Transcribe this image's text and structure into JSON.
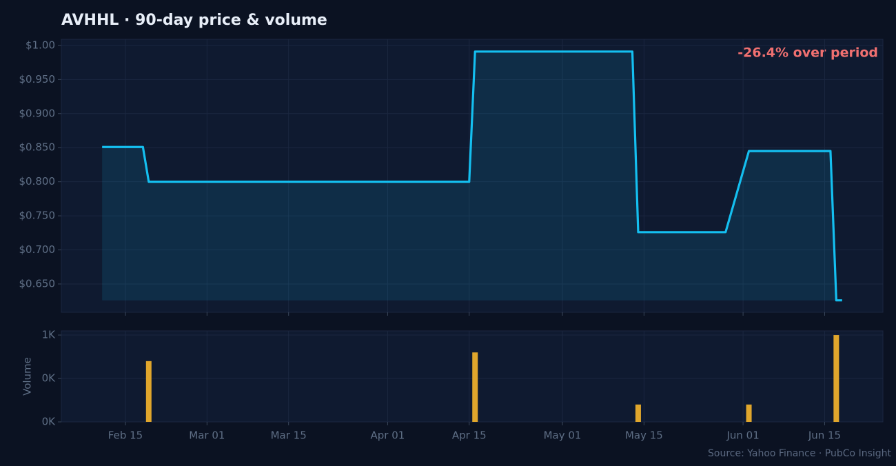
{
  "chart_data": [
    {
      "type": "line",
      "title": "AVHHL  ·  90-day price & volume",
      "annotation": "-26.4% over period",
      "x": [
        "02-11",
        "02-18",
        "02-19",
        "04-15",
        "04-16",
        "05-13",
        "05-14",
        "05-29",
        "06-02",
        "06-16",
        "06-17",
        "06-18"
      ],
      "series": [
        {
          "name": "Price",
          "color": "#14bff0",
          "values": [
            0.851,
            0.851,
            0.8,
            0.8,
            0.991,
            0.991,
            0.726,
            0.726,
            0.845,
            0.845,
            0.626,
            0.626
          ]
        }
      ],
      "xlim": [
        "02-04",
        "06-25"
      ],
      "ylim": [
        0.6085,
        1.009
      ],
      "yticks": [
        {
          "value": 0.65,
          "label": "$0.650"
        },
        {
          "value": 0.7,
          "label": "$0.700"
        },
        {
          "value": 0.75,
          "label": "$0.750"
        },
        {
          "value": 0.8,
          "label": "$0.800"
        },
        {
          "value": 0.85,
          "label": "$0.850"
        },
        {
          "value": 0.9,
          "label": "$0.900"
        },
        {
          "value": 0.95,
          "label": "$0.950"
        },
        {
          "value": 1.0,
          "label": "$1.00"
        }
      ],
      "grid": true
    },
    {
      "type": "bar",
      "ylabel": "Volume",
      "source": "Source: Yahoo Finance · PubCo Insight",
      "x": [
        "02-19",
        "04-16",
        "05-14",
        "06-02",
        "06-17"
      ],
      "series": [
        {
          "name": "Volume",
          "color": "#e0a62c",
          "values": [
            700,
            800,
            200,
            200,
            1000
          ]
        }
      ],
      "xlim": [
        "02-04",
        "06-25"
      ],
      "xticks": [
        {
          "value": "02-15",
          "label": "Feb 15"
        },
        {
          "value": "03-01",
          "label": "Mar 01"
        },
        {
          "value": "03-15",
          "label": "Mar 15"
        },
        {
          "value": "04-01",
          "label": "Apr 01"
        },
        {
          "value": "04-15",
          "label": "Apr 15"
        },
        {
          "value": "05-01",
          "label": "May 01"
        },
        {
          "value": "05-15",
          "label": "May 15"
        },
        {
          "value": "06-01",
          "label": "Jun 01"
        },
        {
          "value": "06-15",
          "label": "Jun 15"
        }
      ],
      "ylim": [
        0,
        1048
      ],
      "yticks": [
        {
          "value": 0,
          "label": "0K"
        },
        {
          "value": 500,
          "label": "0K"
        },
        {
          "value": 1000,
          "label": "1K"
        }
      ],
      "grid": true
    }
  ]
}
